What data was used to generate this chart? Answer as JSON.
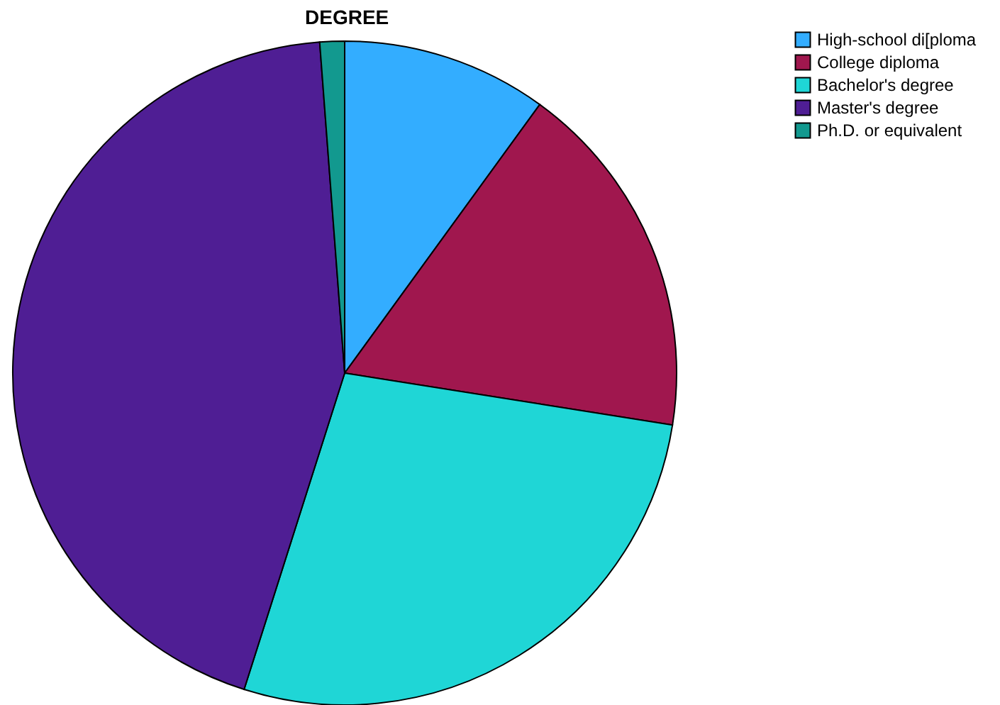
{
  "chart_data": {
    "type": "pie",
    "title": "DEGREE",
    "categories": [
      "High-school di[ploma",
      "College diploma",
      "Bachelor's degree",
      "Master's degree",
      "Ph.D. or equivalent"
    ],
    "values": [
      10,
      17.5,
      27.4,
      43.9,
      1.2
    ],
    "colors": [
      "#33adff",
      "#a0174e",
      "#1fd6d6",
      "#4f1e94",
      "#12998f"
    ],
    "legend": "top right"
  }
}
